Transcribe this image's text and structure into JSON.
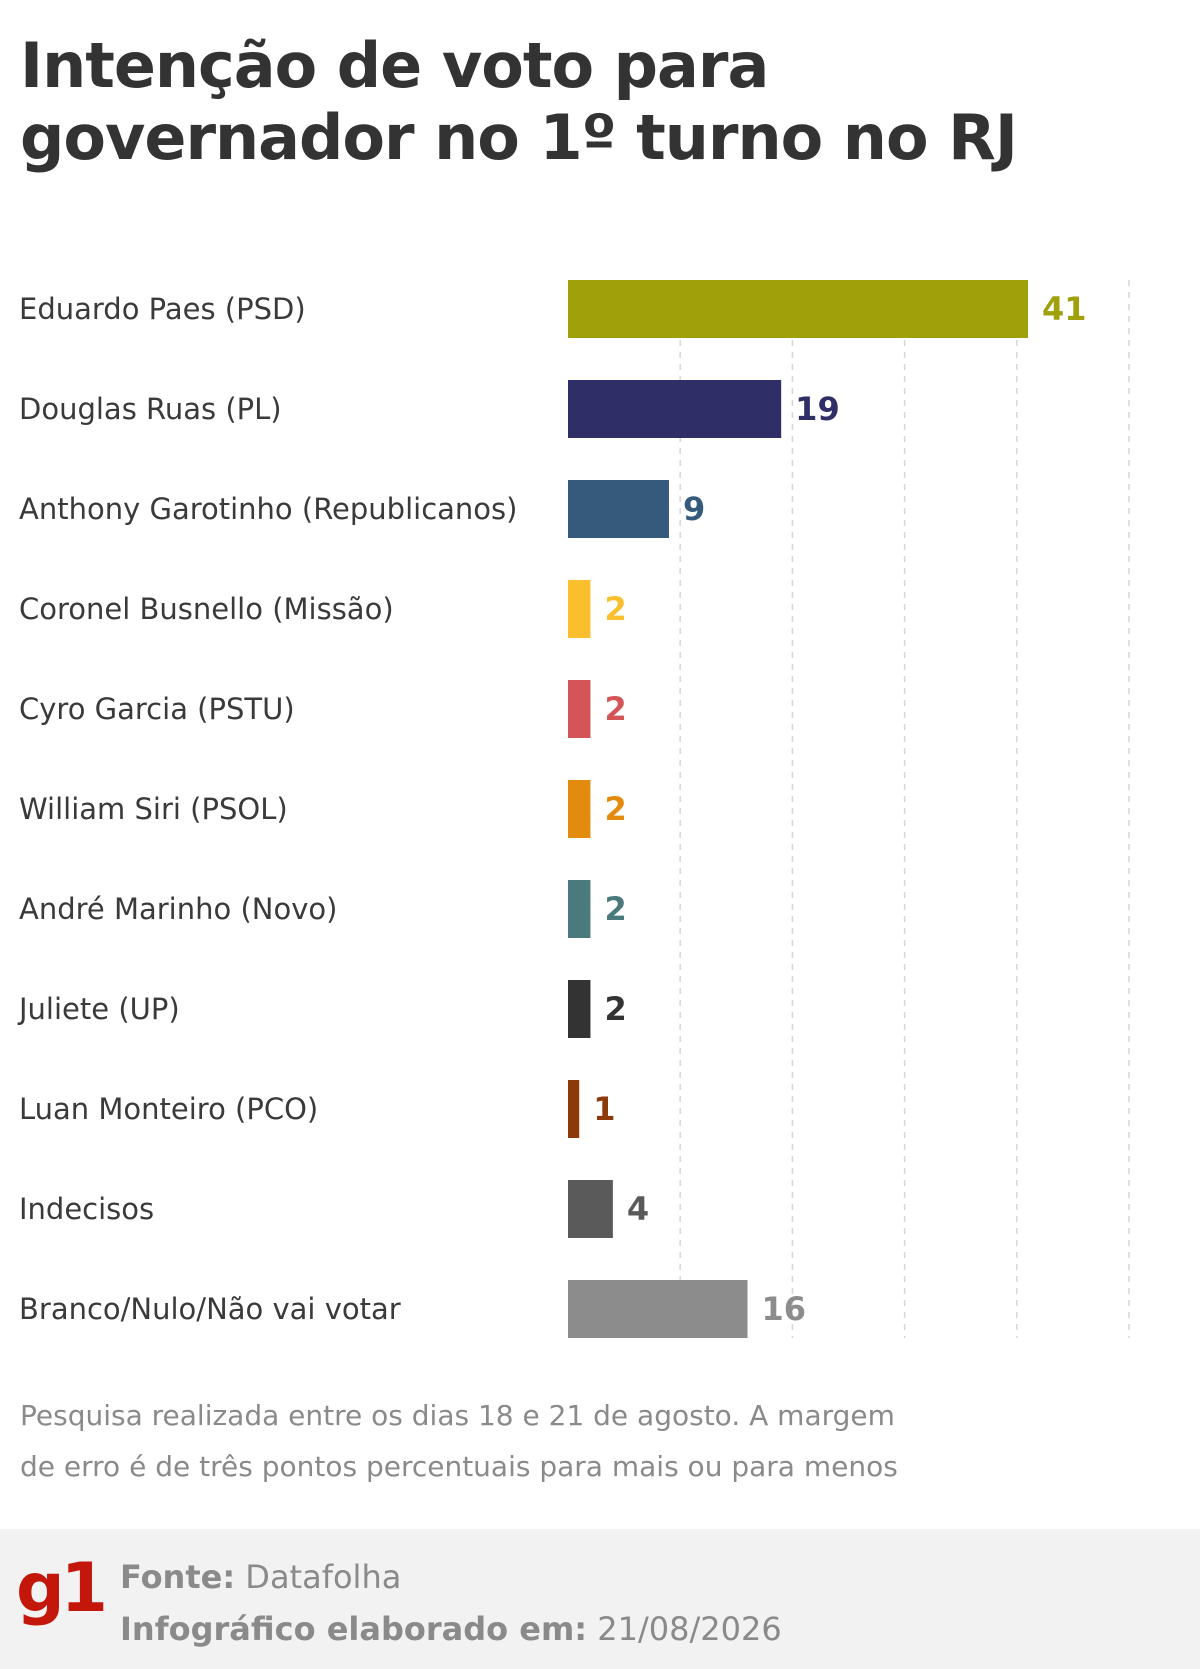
{
  "chart_data": {
    "type": "bar",
    "orientation": "horizontal",
    "title": "Intenção de voto para governador no 1º turno no RJ",
    "categories": [
      "Eduardo Paes (PSD)",
      "Douglas Ruas (PL)",
      "Anthony Garotinho (Republicanos)",
      "Coronel Busnello (Missão)",
      "Cyro Garcia (PSTU)",
      "William Siri (PSOL)",
      "André Marinho (Novo)",
      "Juliete (UP)",
      "Luan Monteiro (PCO)",
      "Indecisos",
      "Branco/Nulo/Não vai votar"
    ],
    "values": [
      41,
      19,
      9,
      2,
      2,
      2,
      2,
      2,
      1,
      4,
      16
    ],
    "colors": [
      "#a0a00a",
      "#2f2e66",
      "#365a7c",
      "#fbbf2d",
      "#d45558",
      "#e38b0c",
      "#4a7a7c",
      "#333333",
      "#8c3a0a",
      "#5a5a5a",
      "#8c8c8c"
    ],
    "xlim": [
      0,
      50
    ],
    "grid": true,
    "legend": "none"
  },
  "note": {
    "line1": "Pesquisa realizada entre os dias 18 e 21 de agosto. A margem",
    "line2": "de erro é de três pontos percentuais para mais ou para menos"
  },
  "footer": {
    "logo": "g1",
    "source_label": "Fonte:",
    "source_value": "Datafolha",
    "date_label": "Infográfico elaborado em:",
    "date_value": "21/08/2026"
  }
}
